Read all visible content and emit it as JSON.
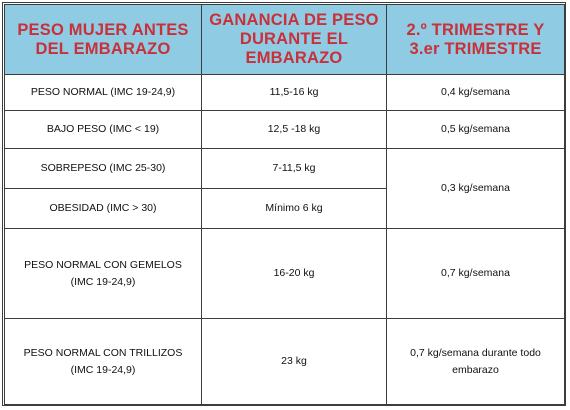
{
  "headers": [
    "PESO MUJER ANTES DEL EMBARAZO",
    "GANANCIA DE PESO DURANTE EL EMBARAZO",
    "2.º TRIMESTRE Y 3.er TRIMESTRE"
  ],
  "rows": [
    {
      "category": "PESO NORMAL (IMC 19-24,9)",
      "gain": "11,5-16 kg",
      "rate": "0,4 kg/semana"
    },
    {
      "category": "BAJO PESO (IMC < 19)",
      "gain": "12,5 -18 kg",
      "rate": "0,5 kg/semana"
    },
    {
      "category": "SOBREPESO (IMC 25-30)",
      "gain": "7-11,5 kg",
      "rate": "0,3 kg/semana"
    },
    {
      "category": "OBESIDAD (IMC > 30)",
      "gain": "Mínimo 6 kg"
    },
    {
      "category_line1": "PESO NORMAL CON GEMELOS",
      "category_line2": "(IMC 19-24,9)",
      "gain": "16-20 kg",
      "rate": "0,7 kg/semana"
    },
    {
      "category_line1": "PESO NORMAL CON TRILLIZOS",
      "category_line2": "(IMC 19-24,9)",
      "gain": "23 kg",
      "rate_line1": "0,7 kg/semana durante todo",
      "rate_line2": "embarazo"
    }
  ],
  "colors": {
    "header_background": "#8fcbe3",
    "header_text": "#c8303a",
    "border": "#3d3d3d"
  }
}
